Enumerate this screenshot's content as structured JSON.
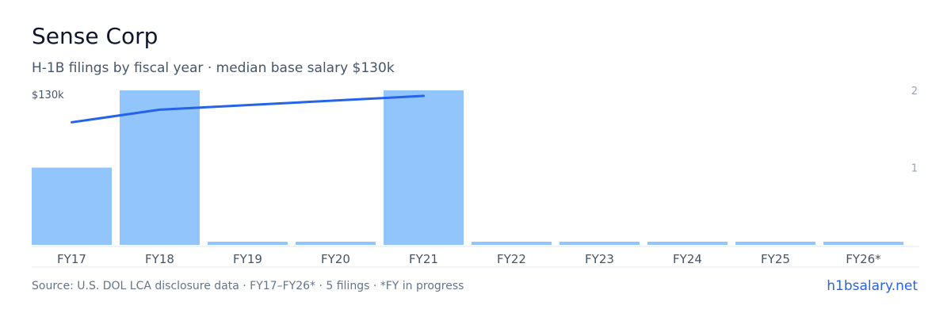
{
  "header": {
    "title": "Sense Corp",
    "subtitle": "H-1B filings by fiscal year · median base salary $130k"
  },
  "footer": {
    "source": "Source: U.S. DOL LCA disclosure data · FY17–FY26* · 5 filings · *FY in progress",
    "brand": "h1bsalary.net"
  },
  "colors": {
    "bar": "#93c5fd",
    "line": "#2563eb",
    "axis_text": "#94a3b8",
    "tick_text": "#475569",
    "baseline": "#e2e8f0"
  },
  "chart_data": {
    "type": "bar",
    "categories": [
      "FY17",
      "FY18",
      "FY19",
      "FY20",
      "FY21",
      "FY22",
      "FY23",
      "FY24",
      "FY25",
      "FY26*"
    ],
    "series": [
      {
        "type": "bar",
        "axis": "right",
        "values": [
          1,
          2,
          0,
          0,
          2,
          0,
          0,
          0,
          0,
          0
        ]
      },
      {
        "type": "line",
        "axis": "left",
        "values": [
          107000,
          118000,
          null,
          null,
          130000,
          null,
          null,
          null,
          null,
          null
        ]
      }
    ],
    "left_axis": {
      "label": "$130k",
      "max": 130000
    },
    "right_axis": {
      "ticks": [
        {
          "value": 1,
          "label": "1"
        },
        {
          "value": 2,
          "label": "2"
        }
      ],
      "ylim": [
        0,
        2
      ]
    },
    "grid": false,
    "legend": "none"
  }
}
